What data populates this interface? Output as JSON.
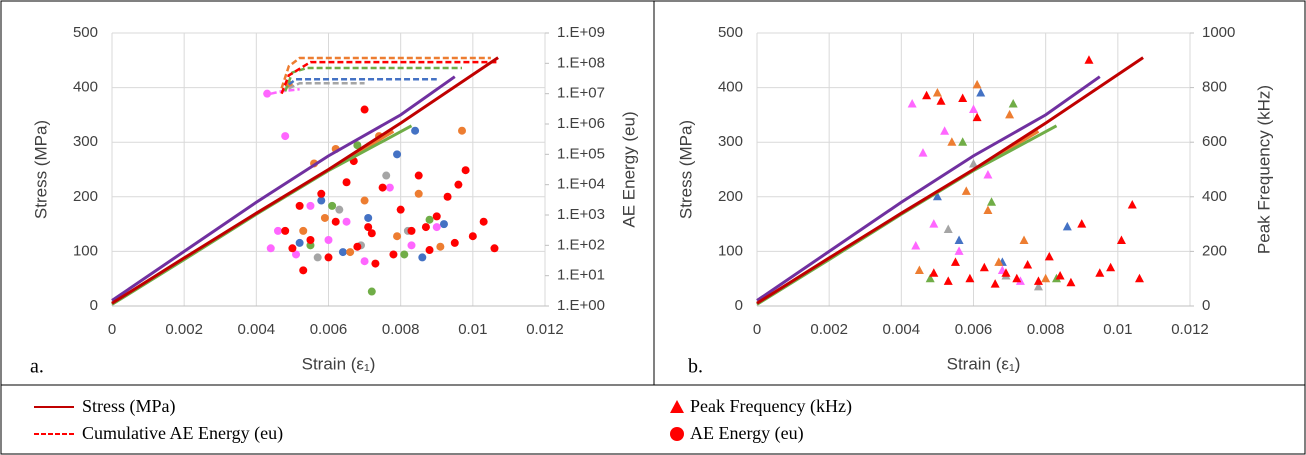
{
  "chart_data": [
    {
      "type": "combo",
      "panel_label": "a.",
      "xlabel": "Strain (ε₁)",
      "ylabel": "Stress (MPa)",
      "y2label": "AE Energy (eu)",
      "xlim": [
        0,
        0.012
      ],
      "xticks": [
        0,
        0.002,
        0.004,
        0.006,
        0.008,
        0.01,
        0.012
      ],
      "ylim": [
        0,
        500
      ],
      "yticks": [
        0,
        100,
        200,
        300,
        400,
        500
      ],
      "y2lim": [
        1,
        1000000000
      ],
      "y2log": true,
      "y2ticks": [
        {
          "value": 1,
          "label": "1.E+00"
        },
        {
          "value": 10,
          "label": "1.E+01"
        },
        {
          "value": 100,
          "label": "1.E+02"
        },
        {
          "value": 1000,
          "label": "1.E+03"
        },
        {
          "value": 10000,
          "label": "1.E+04"
        },
        {
          "value": 100000,
          "label": "1.E+05"
        },
        {
          "value": 1000000,
          "label": "1.E+06"
        },
        {
          "value": 10000000,
          "label": "1.E+07"
        },
        {
          "value": 100000000,
          "label": "1.E+08"
        },
        {
          "value": 1000000000,
          "label": "1.E+09"
        }
      ],
      "grid": true,
      "series": [
        {
          "kind": "marker",
          "marker": "circle",
          "axis": "y2",
          "color": "#4472c4",
          "x": [
            0.0052,
            0.0058,
            0.0064,
            0.0071,
            0.0079,
            0.0086,
            0.0092,
            0.0084
          ],
          "values": [
            120,
            3000,
            60,
            800,
            100000,
            40,
            500,
            600000
          ]
        },
        {
          "kind": "marker",
          "marker": "circle",
          "axis": "y2",
          "color": "#70ad47",
          "x": [
            0.0055,
            0.0061,
            0.0068,
            0.0072,
            0.0081,
            0.0088
          ],
          "values": [
            100,
            2000,
            200000,
            3,
            50,
            700
          ]
        },
        {
          "kind": "marker",
          "marker": "circle",
          "axis": "y2",
          "color": "#a5a5a5",
          "x": [
            0.0057,
            0.0063,
            0.0069,
            0.0076,
            0.0082
          ],
          "values": [
            40,
            1500,
            100,
            20000,
            300
          ]
        },
        {
          "kind": "marker",
          "marker": "circle",
          "axis": "y2",
          "color": "#ed7d31",
          "x": [
            0.0049,
            0.0053,
            0.0056,
            0.0059,
            0.0062,
            0.0066,
            0.007,
            0.0074,
            0.0079,
            0.0085,
            0.0091,
            0.0097
          ],
          "values": [
            20000000,
            300,
            50000,
            800,
            150000,
            60,
            3000,
            400000,
            200,
            5000,
            90,
            600000
          ]
        },
        {
          "kind": "marker",
          "marker": "circle",
          "axis": "y2",
          "color": "#ff66ff",
          "x": [
            0.0043,
            0.0044,
            0.0046,
            0.0048,
            0.0051,
            0.0055,
            0.006,
            0.0065,
            0.007,
            0.0077,
            0.0083,
            0.009
          ],
          "values": [
            10000000,
            80,
            300,
            400000,
            50,
            2000,
            150,
            600,
            30,
            8000,
            100,
            400
          ]
        },
        {
          "kind": "marker",
          "marker": "circle",
          "axis": "y2",
          "color": "#ff0000",
          "x": [
            0.0048,
            0.005,
            0.0052,
            0.0055,
            0.0058,
            0.006,
            0.0062,
            0.0065,
            0.0068,
            0.007,
            0.0072,
            0.0075,
            0.0078,
            0.008,
            0.0083,
            0.0085,
            0.0088,
            0.009,
            0.0093,
            0.0095,
            0.0098,
            0.01,
            0.0103,
            0.0106,
            0.0053,
            0.0067,
            0.0073,
            0.0087,
            0.0096,
            0.0071
          ],
          "values": [
            300,
            80,
            2000,
            150,
            5000,
            40,
            600,
            12000,
            90,
            3000000,
            250,
            8000,
            50,
            1500,
            300,
            20000,
            70,
            900,
            4000,
            120,
            30000,
            200,
            600,
            80,
            15,
            60000,
            25,
            400,
            10000,
            400
          ]
        },
        {
          "kind": "dashed",
          "axis": "y2",
          "color": "#ff66ff",
          "x": [
            0.0044,
            0.0047,
            0.0052
          ],
          "values": [
            10000000,
            12000000,
            14000000
          ]
        },
        {
          "kind": "dashed",
          "axis": "y2",
          "color": "#a5a5a5",
          "x": [
            0.0049,
            0.0052,
            0.007
          ],
          "values": [
            15000000,
            22000000,
            22000000
          ]
        },
        {
          "kind": "dashed",
          "axis": "y2",
          "color": "#4472c4",
          "x": [
            0.0049,
            0.0051,
            0.009
          ],
          "values": [
            20000000,
            30000000,
            30000000
          ]
        },
        {
          "kind": "dashed",
          "axis": "y2",
          "color": "#70ad47",
          "x": [
            0.0048,
            0.005,
            0.0054,
            0.0097
          ],
          "values": [
            12000000,
            50000000,
            70000000,
            70000000
          ]
        },
        {
          "kind": "dashed",
          "axis": "y2",
          "color": "#ed7d31",
          "x": [
            0.0047,
            0.0049,
            0.0052,
            0.0105
          ],
          "values": [
            15000000,
            80000000,
            150000000,
            150000000
          ]
        },
        {
          "kind": "dashed",
          "axis": "y2",
          "color": "#ff0000",
          "x": [
            0.0047,
            0.0049,
            0.0055,
            0.0107
          ],
          "values": [
            10000000,
            40000000,
            110000000,
            110000000
          ]
        },
        {
          "kind": "line",
          "color": "#ed7d31",
          "x": [
            0,
            0.002,
            0.004,
            0.006,
            0.0078
          ],
          "values": [
            4,
            86,
            169,
            249,
            320
          ]
        },
        {
          "kind": "line",
          "color": "#70ad47",
          "x": [
            0,
            0.002,
            0.004,
            0.006,
            0.0083
          ],
          "values": [
            3,
            85,
            168,
            248,
            330
          ]
        },
        {
          "kind": "line",
          "color": "#7030a0",
          "x": [
            0,
            0.002,
            0.004,
            0.006,
            0.008,
            0.0095
          ],
          "values": [
            10,
            100,
            190,
            275,
            350,
            420
          ]
        },
        {
          "kind": "line",
          "color": "#c00000",
          "x": [
            0,
            0.002,
            0.004,
            0.006,
            0.008,
            0.0107
          ],
          "values": [
            5,
            88,
            170,
            250,
            335,
            455
          ]
        }
      ]
    },
    {
      "type": "combo",
      "panel_label": "b.",
      "xlabel": "Strain (ε₁)",
      "ylabel": "Stress (MPa)",
      "y2label": "Peak Frequency (kHz)",
      "xlim": [
        0,
        0.012
      ],
      "xticks": [
        0,
        0.002,
        0.004,
        0.006,
        0.008,
        0.01,
        0.012
      ],
      "ylim": [
        0,
        500
      ],
      "yticks": [
        0,
        100,
        200,
        300,
        400,
        500
      ],
      "y2lim": [
        0,
        1000
      ],
      "y2log": false,
      "y2ticks": [
        0,
        200,
        400,
        600,
        800,
        1000
      ],
      "grid": true,
      "series": [
        {
          "kind": "marker",
          "marker": "triangle",
          "axis": "y2",
          "color": "#4472c4",
          "x": [
            0.005,
            0.0056,
            0.0062,
            0.0068,
            0.0086
          ],
          "values": [
            400,
            240,
            780,
            160,
            290
          ]
        },
        {
          "kind": "marker",
          "marker": "triangle",
          "axis": "y2",
          "color": "#70ad47",
          "x": [
            0.0048,
            0.0057,
            0.0065,
            0.0071,
            0.0083
          ],
          "values": [
            100,
            600,
            380,
            740,
            100
          ]
        },
        {
          "kind": "marker",
          "marker": "triangle",
          "axis": "y2",
          "color": "#a5a5a5",
          "x": [
            0.0053,
            0.006,
            0.0069,
            0.0078
          ],
          "values": [
            280,
            520,
            110,
            70
          ]
        },
        {
          "kind": "marker",
          "marker": "triangle",
          "axis": "y2",
          "color": "#ed7d31",
          "x": [
            0.0045,
            0.005,
            0.0054,
            0.0058,
            0.0061,
            0.0064,
            0.0067,
            0.007,
            0.0074,
            0.008
          ],
          "values": [
            130,
            780,
            600,
            420,
            810,
            350,
            160,
            700,
            240,
            100
          ]
        },
        {
          "kind": "marker",
          "marker": "triangle",
          "axis": "y2",
          "color": "#ff66ff",
          "x": [
            0.0043,
            0.0044,
            0.0046,
            0.0049,
            0.0052,
            0.0056,
            0.006,
            0.0064,
            0.0068,
            0.0073
          ],
          "values": [
            740,
            220,
            560,
            300,
            640,
            200,
            720,
            480,
            130,
            90
          ]
        },
        {
          "kind": "marker",
          "marker": "triangle",
          "axis": "y2",
          "color": "#ff0000",
          "x": [
            0.0047,
            0.0049,
            0.0051,
            0.0053,
            0.0055,
            0.0057,
            0.0059,
            0.0061,
            0.0063,
            0.0066,
            0.0069,
            0.0072,
            0.0075,
            0.0078,
            0.0081,
            0.0084,
            0.0087,
            0.009,
            0.0092,
            0.0095,
            0.0098,
            0.0101,
            0.0104,
            0.0106
          ],
          "values": [
            770,
            120,
            750,
            90,
            160,
            760,
            100,
            690,
            140,
            80,
            120,
            100,
            150,
            90,
            180,
            110,
            85,
            300,
            900,
            120,
            140,
            240,
            370,
            100
          ]
        },
        {
          "kind": "line",
          "color": "#ed7d31",
          "x": [
            0,
            0.002,
            0.004,
            0.006,
            0.0078
          ],
          "values": [
            4,
            86,
            169,
            249,
            320
          ]
        },
        {
          "kind": "line",
          "color": "#70ad47",
          "x": [
            0,
            0.002,
            0.004,
            0.006,
            0.0083
          ],
          "values": [
            3,
            85,
            168,
            248,
            330
          ]
        },
        {
          "kind": "line",
          "color": "#7030a0",
          "x": [
            0,
            0.002,
            0.004,
            0.006,
            0.008,
            0.0095
          ],
          "values": [
            10,
            100,
            190,
            275,
            350,
            420
          ]
        },
        {
          "kind": "line",
          "color": "#c00000",
          "x": [
            0,
            0.002,
            0.004,
            0.006,
            0.008,
            0.0107
          ],
          "values": [
            5,
            88,
            170,
            250,
            335,
            455
          ]
        }
      ]
    }
  ],
  "legend": {
    "items": [
      {
        "label": "Stress (MPa)",
        "symbol": "line",
        "color": "#c00000"
      },
      {
        "label": "Cumulative AE Energy (eu)",
        "symbol": "dashed",
        "color": "#ff0000"
      },
      {
        "label": "Peak Frequency (kHz)",
        "symbol": "triangle",
        "color": "#ff0000"
      },
      {
        "label": "AE Energy (eu)",
        "symbol": "circle",
        "color": "#ff0000"
      }
    ]
  }
}
